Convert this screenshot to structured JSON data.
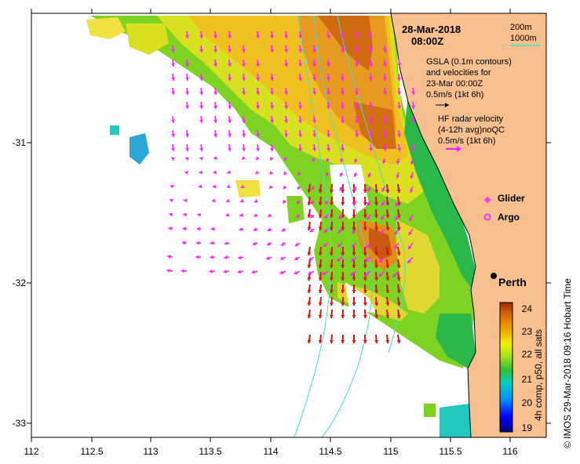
{
  "title": {
    "date": "28-Mar-2018",
    "time": "08:00Z"
  },
  "isobath_legend": {
    "depth1": "200m",
    "depth2": "1000m",
    "line_color": "#40e0d0"
  },
  "gsla_legend": {
    "line1": "GSLA (0.1m contours)",
    "line2": "and velocities for",
    "line3": "23-Mar 00:00Z",
    "line4": "0.5m/s (1kt 6h)"
  },
  "radar_legend": {
    "line1": "HF radar velocity",
    "line2": "(4-12h avg)noQC",
    "line3": "0.5m/s (1kt 6h)"
  },
  "markers": {
    "glider": "Glider",
    "argo": "Argo",
    "color": "#ff33ff"
  },
  "city": {
    "name": "Perth"
  },
  "colorbar": {
    "title": "4h comp, p50, all sats",
    "ticks": [
      "24",
      "23",
      "22",
      "21",
      "20",
      "19"
    ]
  },
  "credit": "© IMOS 29-Mar-2018 09:16 Hobart Time",
  "axes": {
    "x_ticks": [
      "112",
      "112.5",
      "113",
      "113.5",
      "114",
      "114.5",
      "115",
      "115.5",
      "116"
    ],
    "y_ticks": [
      "-31",
      "-32",
      "-33"
    ]
  },
  "colors": {
    "land": "#f7c08e",
    "radar_arrow": "#dd1111",
    "gsla_arrow": "#ff22ff",
    "isobath": "#40e0d0"
  }
}
